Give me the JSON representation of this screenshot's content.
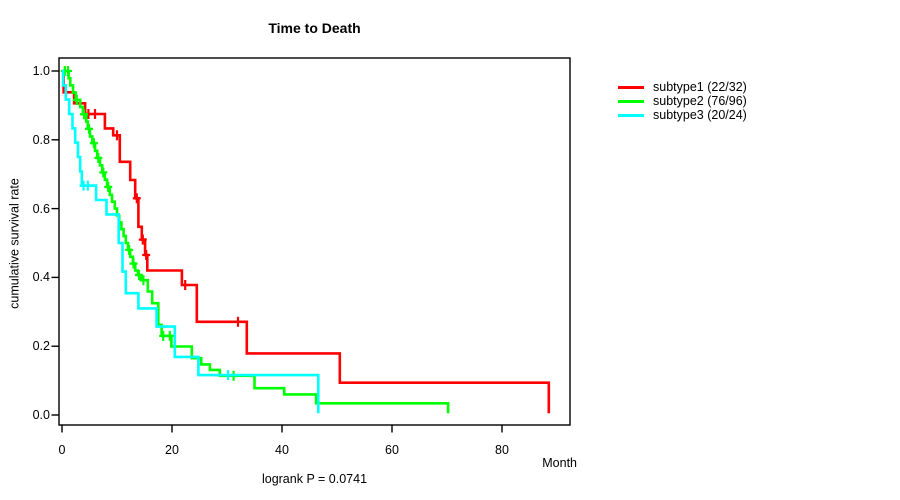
{
  "title": "Time to Death",
  "footnote": "logrank P = 0.0741",
  "x_axis": {
    "label": "Month",
    "ticks": [
      "0",
      "20",
      "40",
      "60",
      "80"
    ]
  },
  "y_axis": {
    "label": "cumulative survival rate",
    "ticks": [
      "0.0",
      "0.2",
      "0.4",
      "0.6",
      "0.8",
      "1.0"
    ]
  },
  "legend": {
    "entries": [
      "subtype1 (22/32)",
      "subtype2 (76/96)",
      "subtype3 (20/24)"
    ]
  },
  "colors": {
    "subtype1": "#ff0000",
    "subtype2": "#00ff00",
    "subtype3": "#00ffff",
    "axis": "#000000",
    "background": "#ffffff"
  },
  "chart_data": {
    "type": "line",
    "subtype": "kaplan-meier-step",
    "title": "Time to Death",
    "xlabel": "Month",
    "ylabel": "cumulative survival rate",
    "xlim": [
      0,
      92
    ],
    "ylim": [
      0,
      1.0
    ],
    "x_ticks": [
      0,
      20,
      40,
      60,
      80
    ],
    "y_ticks": [
      0,
      0.2,
      0.4,
      0.6,
      0.8,
      1.0
    ],
    "grid": false,
    "legend_position": "outside-right",
    "annotation": "logrank P = 0.0741",
    "series": [
      {
        "name": "subtype1 (22/32)",
        "color": "#ff0000",
        "events_total": "22/32",
        "points": [
          [
            0,
            1.0
          ],
          [
            0.3,
            0.938
          ],
          [
            2.2,
            0.906
          ],
          [
            4.2,
            0.875
          ],
          [
            7.8,
            0.833
          ],
          [
            9.3,
            0.813
          ],
          [
            10.5,
            0.736
          ],
          [
            12.4,
            0.683
          ],
          [
            13.3,
            0.63
          ],
          [
            13.9,
            0.547
          ],
          [
            14.5,
            0.51
          ],
          [
            15.1,
            0.465
          ],
          [
            15.5,
            0.42
          ],
          [
            21.8,
            0.378
          ],
          [
            24.5,
            0.271
          ],
          [
            33.6,
            0.179
          ],
          [
            50.5,
            0.094
          ],
          [
            88.5,
            0.005
          ]
        ],
        "censors": [
          [
            4.8,
            0.875
          ],
          [
            6.0,
            0.875
          ],
          [
            10.0,
            0.813
          ],
          [
            13.6,
            0.63
          ],
          [
            14.7,
            0.51
          ],
          [
            15.3,
            0.465
          ],
          [
            22.4,
            0.378
          ],
          [
            32.0,
            0.271
          ]
        ]
      },
      {
        "name": "subtype2 (76/96)",
        "color": "#00ff00",
        "events_total": "76/96",
        "points": [
          [
            0,
            1.0
          ],
          [
            1.2,
            0.979
          ],
          [
            1.5,
            0.958
          ],
          [
            2.0,
            0.937
          ],
          [
            2.5,
            0.916
          ],
          [
            3.3,
            0.895
          ],
          [
            3.8,
            0.874
          ],
          [
            4.4,
            0.853
          ],
          [
            4.7,
            0.832
          ],
          [
            5.1,
            0.81
          ],
          [
            5.5,
            0.79
          ],
          [
            6.0,
            0.768
          ],
          [
            6.4,
            0.747
          ],
          [
            6.9,
            0.726
          ],
          [
            7.3,
            0.705
          ],
          [
            7.8,
            0.684
          ],
          [
            8.2,
            0.663
          ],
          [
            8.7,
            0.64
          ],
          [
            9.1,
            0.62
          ],
          [
            9.6,
            0.6
          ],
          [
            10.0,
            0.58
          ],
          [
            10.4,
            0.56
          ],
          [
            10.8,
            0.54
          ],
          [
            11.2,
            0.52
          ],
          [
            11.6,
            0.5
          ],
          [
            12.0,
            0.48
          ],
          [
            12.4,
            0.46
          ],
          [
            12.9,
            0.44
          ],
          [
            13.3,
            0.42
          ],
          [
            13.8,
            0.407
          ],
          [
            14.4,
            0.392
          ],
          [
            15.6,
            0.359
          ],
          [
            16.4,
            0.325
          ],
          [
            17.5,
            0.262
          ],
          [
            18.1,
            0.23
          ],
          [
            19.9,
            0.199
          ],
          [
            23.6,
            0.165
          ],
          [
            25.3,
            0.147
          ],
          [
            26.9,
            0.131
          ],
          [
            28.7,
            0.114
          ],
          [
            35.0,
            0.078
          ],
          [
            40.4,
            0.06
          ],
          [
            46.2,
            0.034
          ],
          [
            70.2,
            0.005
          ]
        ],
        "censors": [
          [
            0.5,
            1.0
          ],
          [
            1.1,
            1.0
          ],
          [
            2.7,
            0.916
          ],
          [
            4.0,
            0.874
          ],
          [
            4.9,
            0.832
          ],
          [
            5.8,
            0.79
          ],
          [
            6.6,
            0.747
          ],
          [
            7.5,
            0.705
          ],
          [
            8.4,
            0.663
          ],
          [
            12.2,
            0.48
          ],
          [
            13.0,
            0.44
          ],
          [
            14.0,
            0.407
          ],
          [
            14.8,
            0.392
          ],
          [
            18.4,
            0.23
          ],
          [
            19.6,
            0.23
          ],
          [
            31.2,
            0.114
          ]
        ]
      },
      {
        "name": "subtype3 (20/24)",
        "color": "#00ffff",
        "events_total": "20/24",
        "points": [
          [
            0,
            1.0
          ],
          [
            0.2,
            0.958
          ],
          [
            0.7,
            0.917
          ],
          [
            1.3,
            0.875
          ],
          [
            1.9,
            0.833
          ],
          [
            2.4,
            0.792
          ],
          [
            2.9,
            0.75
          ],
          [
            3.3,
            0.708
          ],
          [
            3.6,
            0.667
          ],
          [
            6.2,
            0.625
          ],
          [
            8.1,
            0.583
          ],
          [
            10.3,
            0.5
          ],
          [
            11.0,
            0.417
          ],
          [
            11.6,
            0.354
          ],
          [
            13.9,
            0.31
          ],
          [
            17.2,
            0.257
          ],
          [
            20.5,
            0.169
          ],
          [
            24.8,
            0.116
          ],
          [
            46.6,
            0.005
          ]
        ],
        "censors": [
          [
            3.9,
            0.667
          ],
          [
            4.7,
            0.667
          ],
          [
            30.2,
            0.116
          ]
        ]
      }
    ]
  }
}
